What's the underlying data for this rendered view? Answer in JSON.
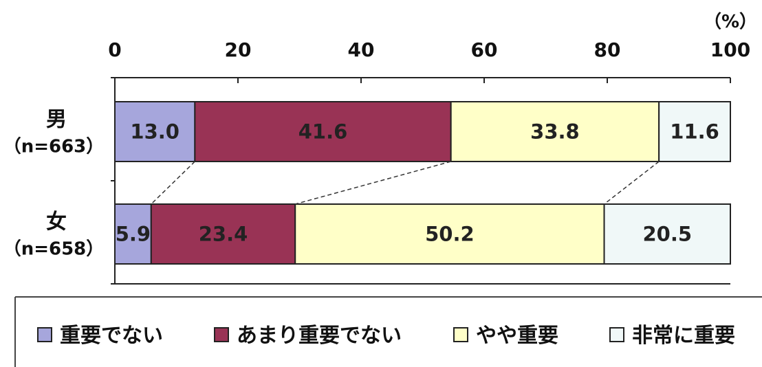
{
  "chart_data": {
    "type": "bar",
    "orientation": "horizontal",
    "stacked": true,
    "unit_label": "（%）",
    "xlim": [
      0,
      100
    ],
    "x_ticks": [
      "0",
      "20",
      "40",
      "60",
      "80",
      "100"
    ],
    "categories": [
      {
        "label": "男",
        "n_label": "（n=663）"
      },
      {
        "label": "女",
        "n_label": "（n=658）"
      }
    ],
    "series": [
      {
        "name": "重要でない",
        "color": "#a6a6dc",
        "values": [
          13.0,
          5.9
        ]
      },
      {
        "name": "あまり重要でない",
        "color": "#993355",
        "values": [
          41.6,
          23.4
        ]
      },
      {
        "name": "やや重要",
        "color": "#ffffc8",
        "values": [
          33.8,
          50.2
        ]
      },
      {
        "name": "非常に重要",
        "color": "#f0f8f8",
        "values": [
          11.6,
          20.5
        ]
      }
    ],
    "data_labels": [
      [
        "13.0",
        "5.9"
      ],
      [
        "41.6",
        "23.4"
      ],
      [
        "33.8",
        "50.2"
      ],
      [
        "11.6",
        "20.5"
      ]
    ],
    "connector_lines": true,
    "legend_position": "bottom",
    "grid": false
  }
}
